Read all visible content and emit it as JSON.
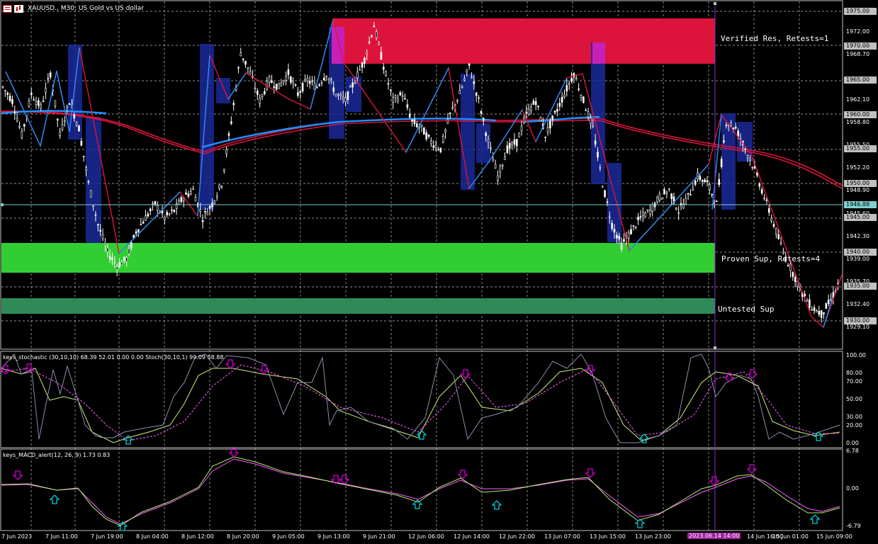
{
  "header": {
    "symbol_title": "XAUUSD., M30:  US Gold vs US dollar"
  },
  "zones": {
    "resistance_label": "Verified Res, Retests=1",
    "proven_support_label": "Proven Sup, Retests=4",
    "untested_support_label": "Untested Sup"
  },
  "price_axis": {
    "labels": [
      "1975.00",
      "1972.00",
      "1970.00",
      "1968.70",
      "1965.00",
      "1962.10",
      "1960.00",
      "1958.80",
      "1955.50",
      "1955.00",
      "1952.20",
      "1950.00",
      "1948.90",
      "1945.60",
      "1945.00",
      "1942.30",
      "1940.00",
      "1939.00",
      "1935.70",
      "1935.00",
      "1932.40",
      "1930.00",
      "1929.10"
    ],
    "current_price": "1946.88"
  },
  "stoch_panel": {
    "label": "keys_stochastic (30,10,10) 68.39 52.01 0.00 0.00 Stoch(30,10,1) 99.09 58.88",
    "levels": [
      "100.00",
      "80.00",
      "70.00",
      "50.00",
      "30.00",
      "20.00",
      "0.00"
    ]
  },
  "macd_panel": {
    "label": "keys_MACD_alert(12, 26, 9) 1.73 0.83",
    "levels": [
      "6.78",
      "0.00",
      "-6.79"
    ]
  },
  "time_axis": {
    "labels": [
      "7 Jun 2023",
      "7 Jun 11:00",
      "7 Jun 19:00",
      "8 Jun 04:00",
      "8 Jun 12:00",
      "8 Jun 20:00",
      "9 Jun 05:00",
      "9 Jun 13:00",
      "9 Jun 21:00",
      "12 Jun 06:00",
      "12 Jun 14:00",
      "12 Jun 22:00",
      "13 Jun 07:00",
      "13 Jun 15:00",
      "13 Jun 23:00",
      "14 Jun 16:00",
      "15 Jun 01:00",
      "15 Jun 09:00"
    ],
    "current_time": "2023.06.14 14:00"
  },
  "colors": {
    "resistance_zone": "#dc143c",
    "support_zone": "#32cd32",
    "untested_zone": "#2e8b57",
    "ma_red": "#dc143c",
    "ma_blue": "#1e90ff",
    "candle": "#ffffff",
    "signal_up": "#00ced1",
    "signal_down": "#d000d0"
  },
  "chart_data": {
    "type": "line",
    "title": "XAUUSD., M30:  US Gold vs US dollar",
    "ylim": [
      1928,
      1976
    ],
    "price_series": [
      1964,
      1962,
      1957,
      1963,
      1961,
      1966,
      1957,
      1962,
      1958,
      1950,
      1944,
      1940,
      1938,
      1939,
      1943,
      1945,
      1947,
      1945,
      1946,
      1948,
      1949,
      1945,
      1947,
      1950,
      1959,
      1969,
      1966,
      1962,
      1965,
      1964,
      1966,
      1963,
      1965,
      1964,
      1966,
      1963,
      1962,
      1965,
      1968,
      1973,
      1967,
      1962,
      1963,
      1959,
      1958,
      1956,
      1955,
      1960,
      1963,
      1967,
      1962,
      1956,
      1951,
      1955,
      1956,
      1960,
      1962,
      1957,
      1960,
      1963,
      1966,
      1962,
      1958,
      1950,
      1944,
      1941,
      1943,
      1945,
      1946,
      1948,
      1949,
      1946,
      1948,
      1951,
      1950,
      1947,
      1959,
      1958,
      1955,
      1952,
      1948,
      1944,
      1940,
      1937,
      1934,
      1932,
      1931,
      1933,
      1936
    ]
  }
}
